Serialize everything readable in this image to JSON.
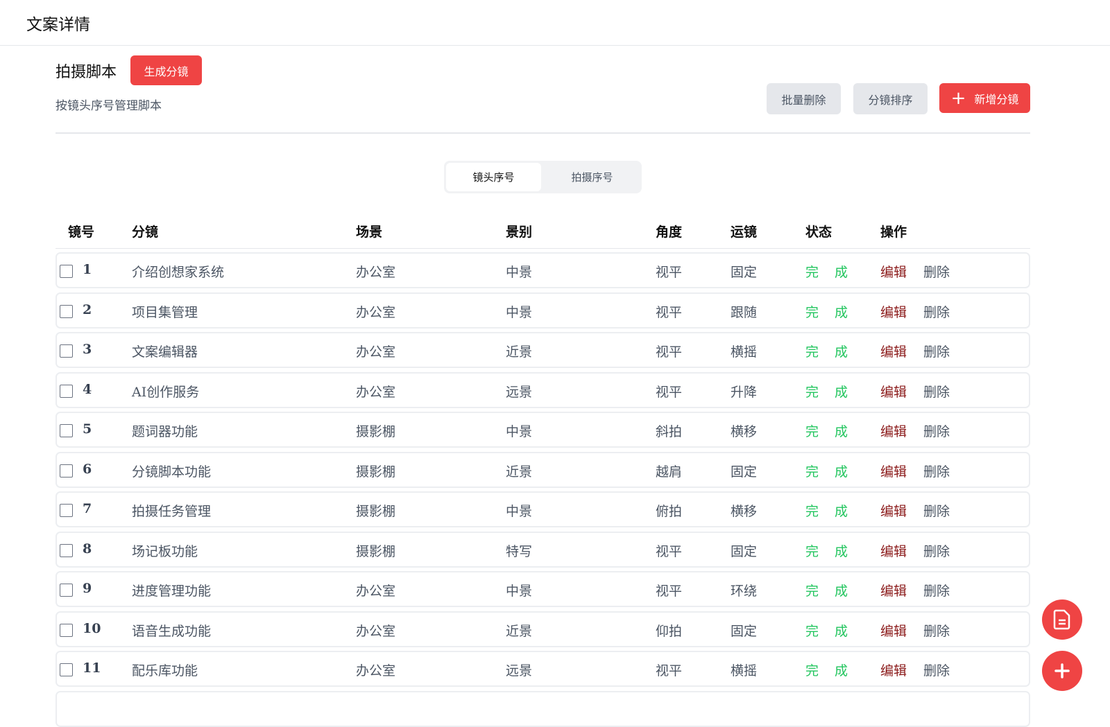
{
  "page_title": "文案详情",
  "section": {
    "title": "拍摄脚本",
    "generate_label": "生成分镜",
    "subtitle": "按镜头序号管理脚本",
    "batch_delete_label": "批量删除",
    "sort_label": "分镜排序",
    "add_label": "新增分镜"
  },
  "tabs": [
    {
      "label": "镜头序号",
      "active": true
    },
    {
      "label": "拍摄序号",
      "active": false
    }
  ],
  "columns": [
    "镜号",
    "分镜",
    "场景",
    "景别",
    "角度",
    "运镜",
    "状态",
    "操作"
  ],
  "rows": [
    {
      "no": "1",
      "shot": "介绍创想家系统",
      "scene": "办公室",
      "size": "中景",
      "angle": "视平",
      "move": "固定",
      "status": [
        "完",
        "成"
      ],
      "edit": "编辑",
      "del": "删除"
    },
    {
      "no": "2",
      "shot": "项目集管理",
      "scene": "办公室",
      "size": "中景",
      "angle": "视平",
      "move": "跟随",
      "status": [
        "完",
        "成"
      ],
      "edit": "编辑",
      "del": "删除"
    },
    {
      "no": "3",
      "shot": "文案编辑器",
      "scene": "办公室",
      "size": "近景",
      "angle": "视平",
      "move": "横摇",
      "status": [
        "完",
        "成"
      ],
      "edit": "编辑",
      "del": "删除"
    },
    {
      "no": "4",
      "shot": "AI创作服务",
      "scene": "办公室",
      "size": "远景",
      "angle": "视平",
      "move": "升降",
      "status": [
        "完",
        "成"
      ],
      "edit": "编辑",
      "del": "删除"
    },
    {
      "no": "5",
      "shot": "题词器功能",
      "scene": "摄影棚",
      "size": "中景",
      "angle": "斜拍",
      "move": "横移",
      "status": [
        "完",
        "成"
      ],
      "edit": "编辑",
      "del": "删除"
    },
    {
      "no": "6",
      "shot": "分镜脚本功能",
      "scene": "摄影棚",
      "size": "近景",
      "angle": "越肩",
      "move": "固定",
      "status": [
        "完",
        "成"
      ],
      "edit": "编辑",
      "del": "删除"
    },
    {
      "no": "7",
      "shot": "拍摄任务管理",
      "scene": "摄影棚",
      "size": "中景",
      "angle": "俯拍",
      "move": "横移",
      "status": [
        "完",
        "成"
      ],
      "edit": "编辑",
      "del": "删除"
    },
    {
      "no": "8",
      "shot": "场记板功能",
      "scene": "摄影棚",
      "size": "特写",
      "angle": "视平",
      "move": "固定",
      "status": [
        "完",
        "成"
      ],
      "edit": "编辑",
      "del": "删除"
    },
    {
      "no": "9",
      "shot": "进度管理功能",
      "scene": "办公室",
      "size": "中景",
      "angle": "视平",
      "move": "环绕",
      "status": [
        "完",
        "成"
      ],
      "edit": "编辑",
      "del": "删除"
    },
    {
      "no": "10",
      "shot": "语音生成功能",
      "scene": "办公室",
      "size": "近景",
      "angle": "仰拍",
      "move": "固定",
      "status": [
        "完",
        "成"
      ],
      "edit": "编辑",
      "del": "删除"
    },
    {
      "no": "11",
      "shot": "配乐库功能",
      "scene": "办公室",
      "size": "远景",
      "angle": "视平",
      "move": "横摇",
      "status": [
        "完",
        "成"
      ],
      "edit": "编辑",
      "del": "删除"
    }
  ],
  "colors": {
    "accent": "#ef4444",
    "done": "#22c55e",
    "edit": "#8b1a1a"
  },
  "fabs": [
    {
      "icon": "document-icon"
    },
    {
      "icon": "plus-icon"
    }
  ]
}
